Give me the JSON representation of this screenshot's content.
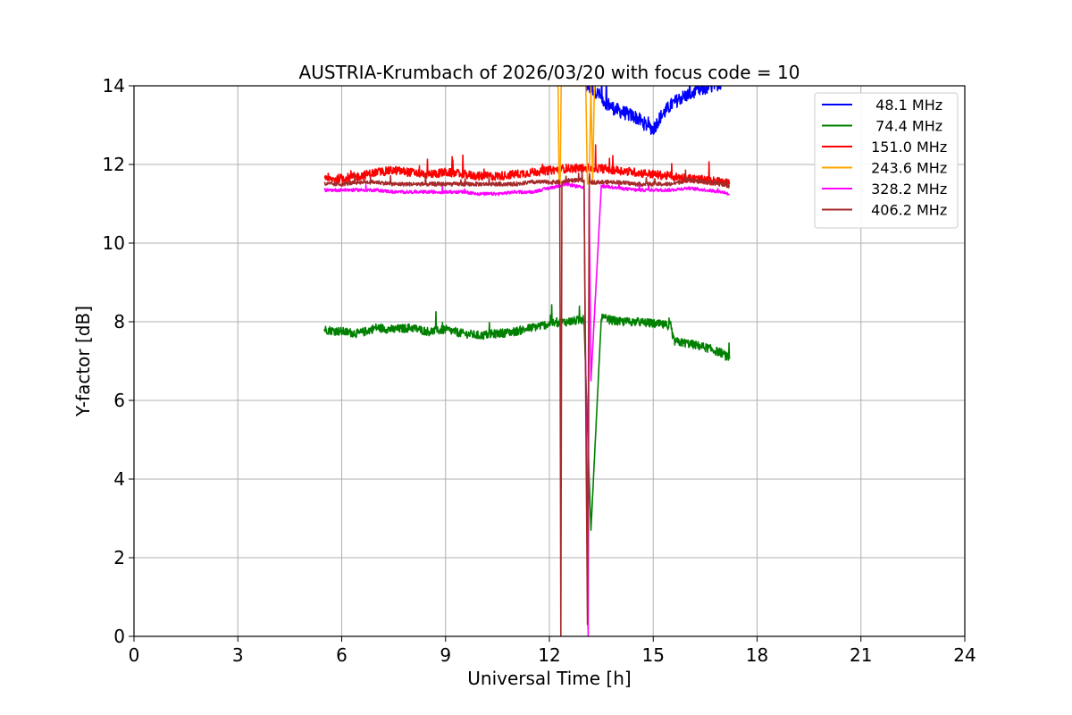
{
  "chart_data": {
    "type": "line",
    "title": "AUSTRIA-Krumbach of 2026/03/20 with focus code = 10",
    "xlabel": "Universal Time [h]",
    "ylabel": "Y-factor [dB]",
    "xlim": [
      0,
      24
    ],
    "ylim": [
      0,
      14
    ],
    "xticks": [
      0,
      3,
      6,
      9,
      12,
      15,
      18,
      21,
      24
    ],
    "yticks": [
      0,
      2,
      4,
      6,
      8,
      10,
      12,
      14
    ],
    "grid": true,
    "legend_position": "top-right",
    "series": [
      {
        "name": "  48.1 MHz",
        "color": "#0000ff",
        "x": [
          13.0,
          13.3,
          13.6,
          13.9,
          14.2,
          14.5,
          14.8,
          15.0,
          15.2,
          15.5,
          15.8,
          16.1,
          16.4,
          16.7,
          17.0
        ],
        "y": [
          14.0,
          13.9,
          13.6,
          13.4,
          13.3,
          13.2,
          13.0,
          12.9,
          13.2,
          13.5,
          13.7,
          13.8,
          13.9,
          14.0,
          14.1
        ],
        "noise": 0.35
      },
      {
        "name": "  74.4 MHz",
        "color": "#008000",
        "x": [
          5.5,
          6.0,
          6.5,
          7.0,
          7.5,
          8.0,
          8.5,
          9.0,
          9.5,
          10.0,
          10.5,
          11.0,
          11.5,
          12.0,
          12.5,
          13.0,
          13.2,
          13.5,
          14.0,
          14.5,
          15.0,
          15.5,
          15.6,
          16.0,
          16.5,
          17.0,
          17.2
        ],
        "y": [
          7.8,
          7.75,
          7.7,
          7.85,
          7.8,
          7.85,
          7.75,
          7.8,
          7.7,
          7.65,
          7.7,
          7.75,
          7.85,
          7.95,
          8.0,
          8.05,
          2.7,
          8.1,
          8.0,
          8.0,
          7.95,
          7.9,
          7.5,
          7.45,
          7.35,
          7.2,
          7.05
        ],
        "noise": 0.22
      },
      {
        "name": " 151.0 MHz",
        "color": "#ff0000",
        "x": [
          5.5,
          6.0,
          6.5,
          7.0,
          7.5,
          8.0,
          8.5,
          9.0,
          9.5,
          10.0,
          10.5,
          11.0,
          11.5,
          12.0,
          12.5,
          13.0,
          13.5,
          14.0,
          14.5,
          15.0,
          15.5,
          16.0,
          16.5,
          17.0,
          17.2
        ],
        "y": [
          11.6,
          11.65,
          11.7,
          11.8,
          11.85,
          11.8,
          11.75,
          11.8,
          11.75,
          11.7,
          11.7,
          11.75,
          11.8,
          11.85,
          11.9,
          11.9,
          11.9,
          11.85,
          11.8,
          11.75,
          11.7,
          11.65,
          11.6,
          11.55,
          11.5
        ],
        "noise": 0.22
      },
      {
        "name": " 243.6 MHz",
        "color": "#ffa500",
        "x": [
          12.25,
          12.28,
          12.31,
          12.34,
          13.05,
          13.1,
          13.15,
          13.2,
          13.25,
          13.3
        ],
        "y": [
          14.0,
          11.6,
          11.5,
          14.0,
          14.0,
          11.5,
          11.6,
          14.0,
          11.5,
          14.0
        ],
        "noise": 0.0
      },
      {
        "name": " 328.2 MHz",
        "color": "#ff00ff",
        "x": [
          5.5,
          6.0,
          6.5,
          7.0,
          7.5,
          8.0,
          8.5,
          9.0,
          9.5,
          10.0,
          10.5,
          11.0,
          11.5,
          12.0,
          12.5,
          13.0,
          13.12,
          13.15,
          13.2,
          13.5,
          14.0,
          14.5,
          15.0,
          15.5,
          16.0,
          16.5,
          17.0,
          17.2
        ],
        "y": [
          11.35,
          11.35,
          11.35,
          11.35,
          11.3,
          11.3,
          11.3,
          11.3,
          11.3,
          11.25,
          11.25,
          11.3,
          11.3,
          11.4,
          11.5,
          11.4,
          0.0,
          11.4,
          6.5,
          11.45,
          11.4,
          11.35,
          11.35,
          11.35,
          11.4,
          11.35,
          11.3,
          11.25
        ],
        "noise": 0.08
      },
      {
        "name": " 406.2 MHz",
        "color": "#a52a2a",
        "x": [
          5.5,
          6.0,
          6.5,
          7.0,
          7.5,
          8.0,
          8.5,
          9.0,
          9.5,
          10.0,
          10.5,
          11.0,
          11.5,
          12.0,
          12.3,
          12.33,
          12.36,
          12.6,
          13.0,
          13.1,
          13.15,
          13.2,
          13.5,
          14.0,
          14.5,
          15.0,
          15.5,
          16.0,
          16.5,
          17.0,
          17.2
        ],
        "y": [
          11.5,
          11.5,
          11.55,
          11.55,
          11.5,
          11.5,
          11.5,
          11.5,
          11.5,
          11.5,
          11.5,
          11.5,
          11.55,
          11.55,
          11.55,
          0.0,
          11.55,
          11.6,
          11.6,
          0.3,
          11.6,
          11.55,
          11.55,
          11.55,
          11.5,
          11.5,
          11.5,
          11.6,
          11.55,
          11.5,
          11.45
        ],
        "noise": 0.1
      }
    ]
  }
}
